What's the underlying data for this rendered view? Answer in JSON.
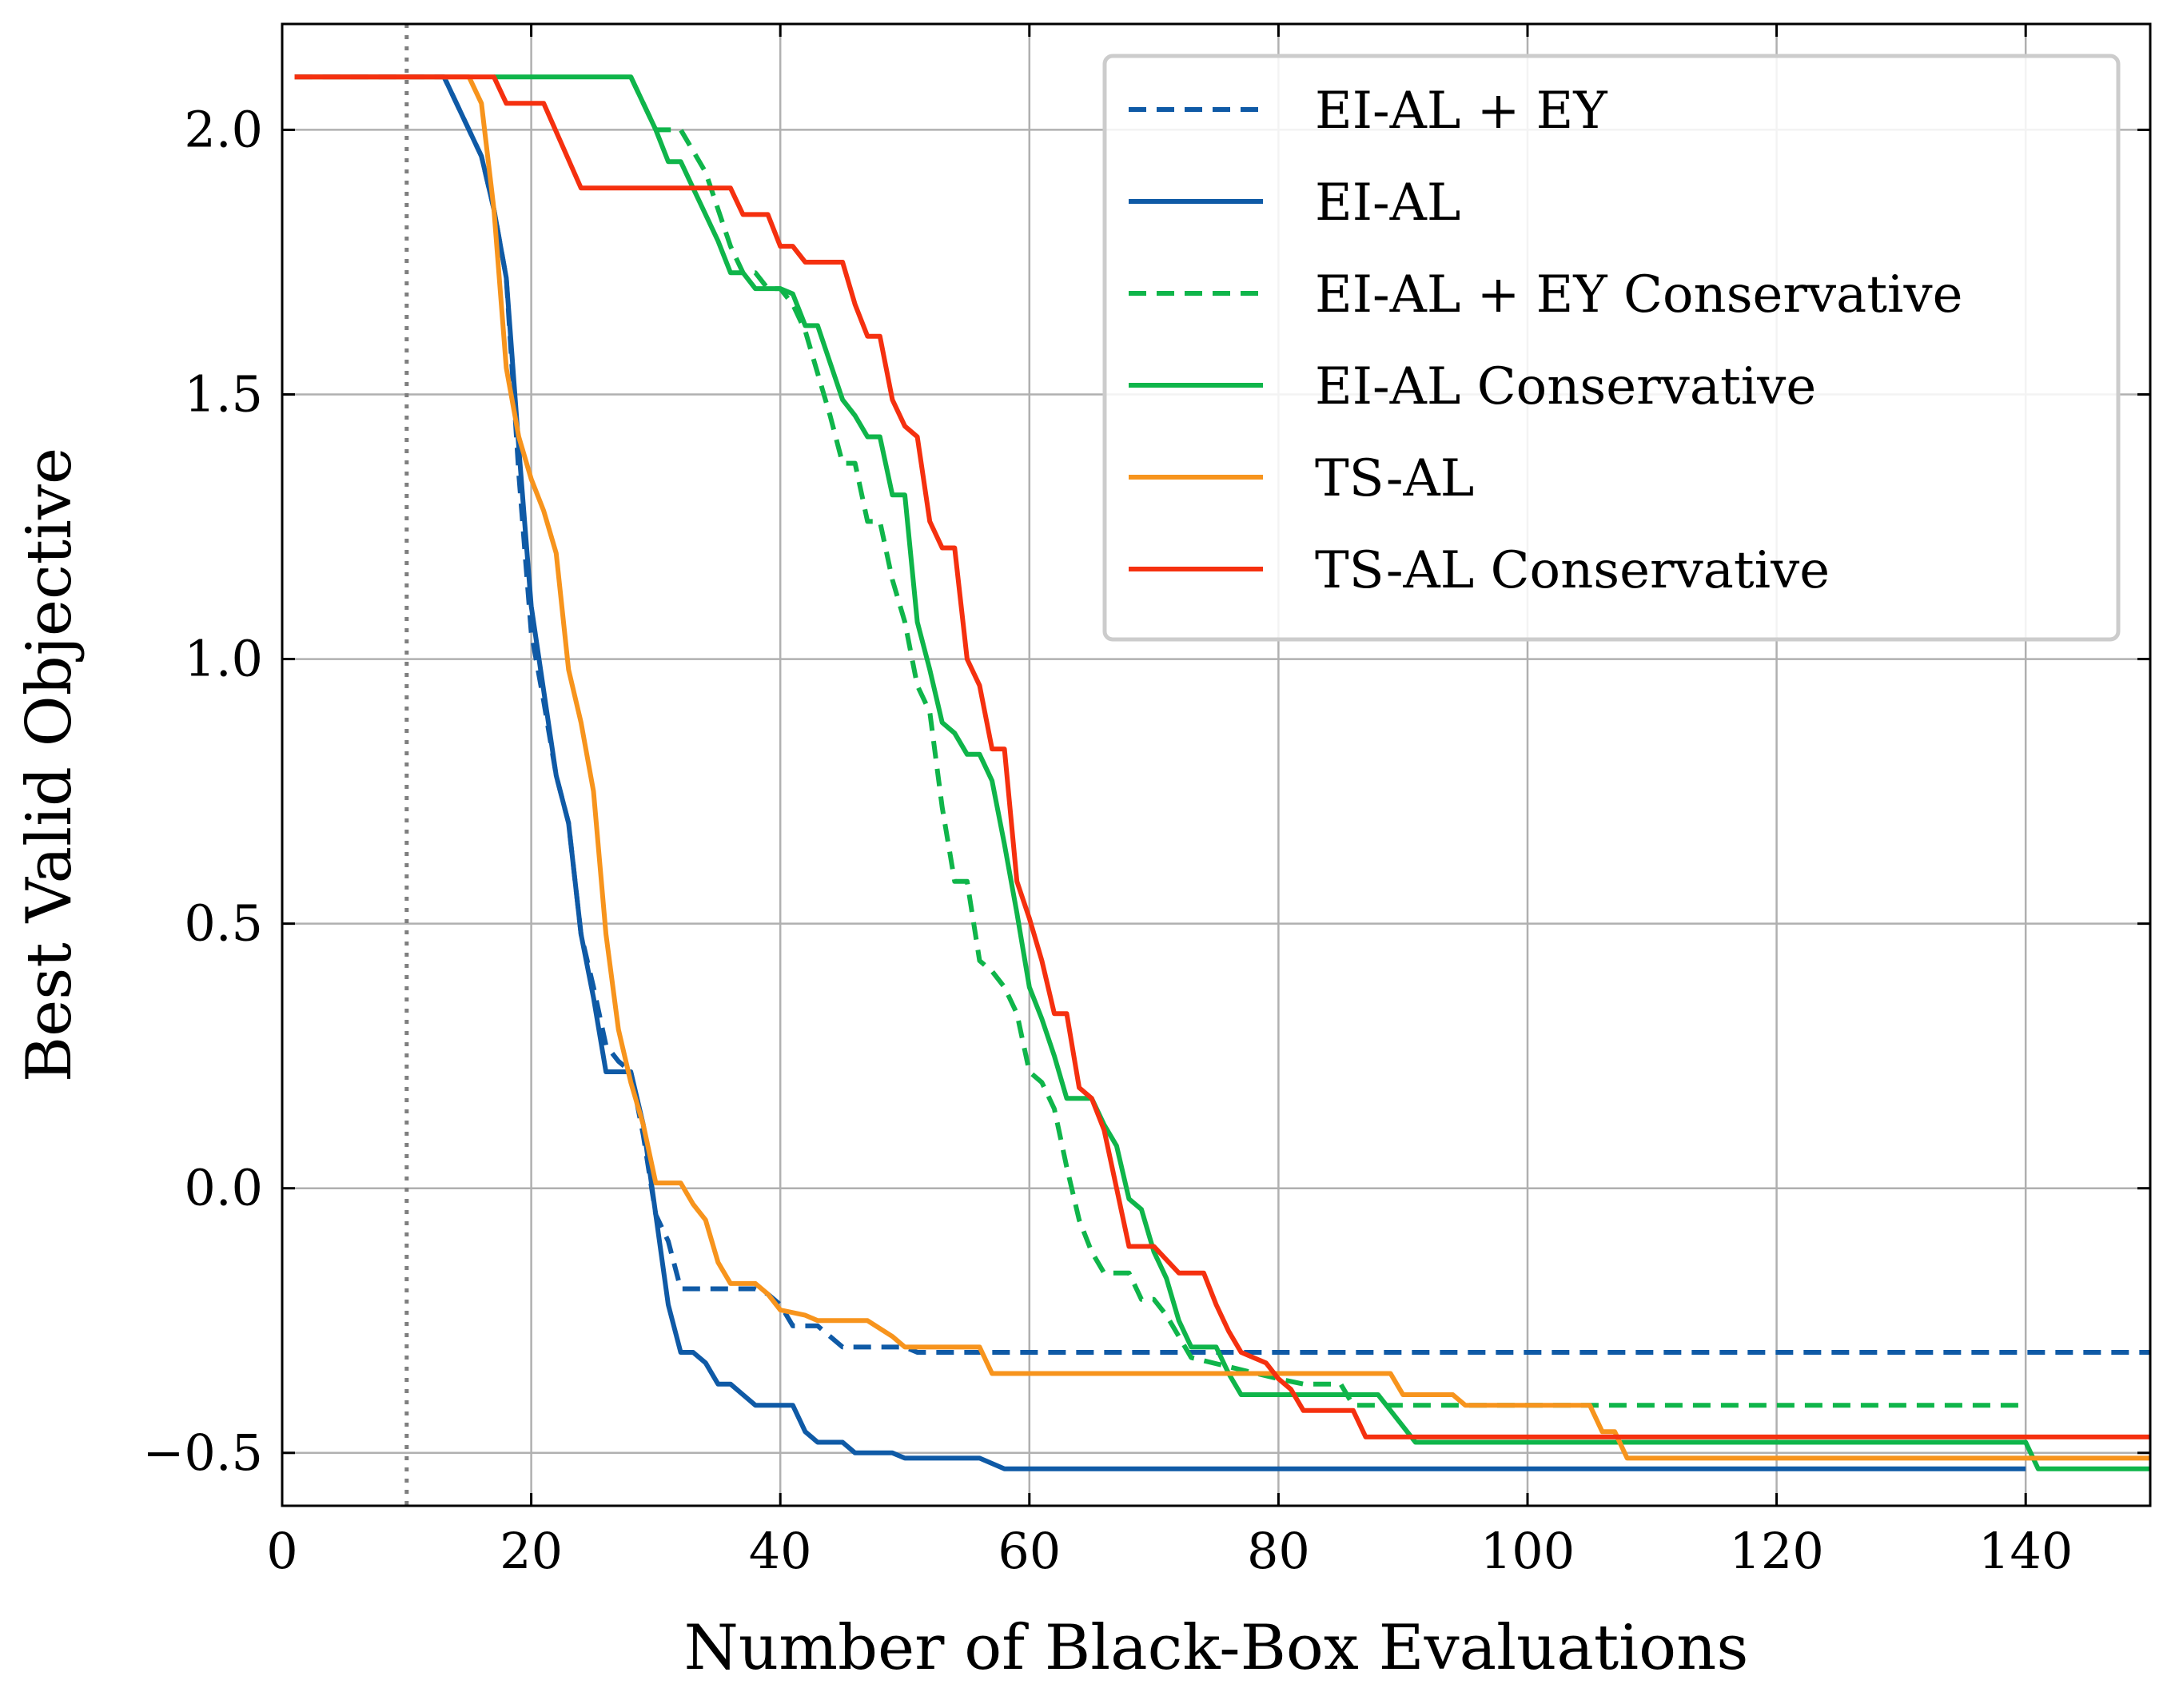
{
  "chart_data": {
    "type": "line",
    "title": "",
    "xlabel": "Number of Black-Box Evaluations",
    "ylabel": "Best Valid Objective",
    "xlim": [
      0,
      150
    ],
    "ylim": [
      -0.6,
      2.2
    ],
    "x_ticks": [
      0,
      20,
      40,
      60,
      80,
      100,
      120,
      140
    ],
    "x_tick_labels": [
      "0",
      "20",
      "40",
      "60",
      "80",
      "100",
      "120",
      "140"
    ],
    "y_ticks": [
      -0.5,
      0.0,
      0.5,
      1.0,
      1.5,
      2.0
    ],
    "y_tick_labels": [
      "−0.5",
      "0.0",
      "0.5",
      "1.0",
      "1.5",
      "2.0"
    ],
    "grid": true,
    "legend_position": "top-right",
    "vline": {
      "x": 10,
      "style": "dotted",
      "color": "#7f7f7f"
    },
    "series": [
      {
        "name": "EI-AL + EY",
        "color": "#0f5aa6",
        "dash": "dashed",
        "points": [
          [
            1,
            2.1
          ],
          [
            13,
            2.1
          ],
          [
            16,
            1.95
          ],
          [
            17,
            1.85
          ],
          [
            18,
            1.72
          ],
          [
            19,
            1.35
          ],
          [
            20,
            1.05
          ],
          [
            21,
            0.92
          ],
          [
            22,
            0.78
          ],
          [
            23,
            0.69
          ],
          [
            24,
            0.48
          ],
          [
            25,
            0.38
          ],
          [
            26,
            0.27
          ],
          [
            27,
            0.24
          ],
          [
            28,
            0.22
          ],
          [
            29,
            0.1
          ],
          [
            30,
            -0.05
          ],
          [
            31,
            -0.1
          ],
          [
            32,
            -0.19
          ],
          [
            33,
            -0.19
          ],
          [
            38,
            -0.19
          ],
          [
            39,
            -0.2
          ],
          [
            40,
            -0.22
          ],
          [
            41,
            -0.26
          ],
          [
            43,
            -0.26
          ],
          [
            45,
            -0.3
          ],
          [
            50,
            -0.3
          ],
          [
            51,
            -0.31
          ],
          [
            150,
            -0.31
          ]
        ]
      },
      {
        "name": "EI-AL",
        "color": "#0f5aa6",
        "dash": "solid",
        "points": [
          [
            1,
            2.1
          ],
          [
            13,
            2.1
          ],
          [
            16,
            1.95
          ],
          [
            17,
            1.85
          ],
          [
            18,
            1.72
          ],
          [
            19,
            1.4
          ],
          [
            20,
            1.1
          ],
          [
            21,
            0.94
          ],
          [
            22,
            0.78
          ],
          [
            23,
            0.69
          ],
          [
            24,
            0.48
          ],
          [
            25,
            0.36
          ],
          [
            26,
            0.22
          ],
          [
            27,
            0.22
          ],
          [
            28,
            0.22
          ],
          [
            29,
            0.12
          ],
          [
            30,
            -0.05
          ],
          [
            31,
            -0.22
          ],
          [
            32,
            -0.31
          ],
          [
            33,
            -0.31
          ],
          [
            34,
            -0.33
          ],
          [
            35,
            -0.37
          ],
          [
            36,
            -0.37
          ],
          [
            37,
            -0.39
          ],
          [
            38,
            -0.41
          ],
          [
            41,
            -0.41
          ],
          [
            42,
            -0.46
          ],
          [
            43,
            -0.48
          ],
          [
            45,
            -0.48
          ],
          [
            46,
            -0.5
          ],
          [
            49,
            -0.5
          ],
          [
            50,
            -0.51
          ],
          [
            56,
            -0.51
          ],
          [
            58,
            -0.53
          ],
          [
            140,
            -0.53
          ]
        ]
      },
      {
        "name": "EI-AL + EY Conservative",
        "color": "#0fb54a",
        "dash": "dashed",
        "points": [
          [
            28,
            2.1
          ],
          [
            30,
            2.0
          ],
          [
            32,
            2.0
          ],
          [
            34,
            1.92
          ],
          [
            35,
            1.85
          ],
          [
            36,
            1.78
          ],
          [
            37,
            1.73
          ],
          [
            38,
            1.73
          ],
          [
            39,
            1.7
          ],
          [
            40,
            1.7
          ],
          [
            41,
            1.67
          ],
          [
            42,
            1.62
          ],
          [
            43,
            1.54
          ],
          [
            44,
            1.46
          ],
          [
            45,
            1.37
          ],
          [
            46,
            1.37
          ],
          [
            47,
            1.26
          ],
          [
            48,
            1.26
          ],
          [
            49,
            1.15
          ],
          [
            50,
            1.07
          ],
          [
            51,
            0.95
          ],
          [
            52,
            0.9
          ],
          [
            53,
            0.72
          ],
          [
            54,
            0.58
          ],
          [
            55,
            0.58
          ],
          [
            56,
            0.43
          ],
          [
            57,
            0.41
          ],
          [
            58,
            0.38
          ],
          [
            59,
            0.33
          ],
          [
            60,
            0.22
          ],
          [
            61,
            0.2
          ],
          [
            62,
            0.15
          ],
          [
            63,
            0.04
          ],
          [
            64,
            -0.06
          ],
          [
            65,
            -0.12
          ],
          [
            66,
            -0.16
          ],
          [
            68,
            -0.16
          ],
          [
            69,
            -0.21
          ],
          [
            70,
            -0.21
          ],
          [
            71,
            -0.24
          ],
          [
            72,
            -0.28
          ],
          [
            73,
            -0.32
          ],
          [
            80,
            -0.36
          ],
          [
            82,
            -0.37
          ],
          [
            85,
            -0.37
          ],
          [
            86,
            -0.41
          ],
          [
            140,
            -0.41
          ]
        ]
      },
      {
        "name": "EI-AL Conservative",
        "color": "#0fb54a",
        "dash": "solid",
        "points": [
          [
            17,
            2.1
          ],
          [
            28,
            2.1
          ],
          [
            30,
            2.0
          ],
          [
            31,
            1.94
          ],
          [
            32,
            1.94
          ],
          [
            33,
            1.89
          ],
          [
            34,
            1.84
          ],
          [
            35,
            1.79
          ],
          [
            36,
            1.73
          ],
          [
            37,
            1.73
          ],
          [
            38,
            1.7
          ],
          [
            40,
            1.7
          ],
          [
            41,
            1.69
          ],
          [
            42,
            1.63
          ],
          [
            43,
            1.63
          ],
          [
            44,
            1.56
          ],
          [
            45,
            1.49
          ],
          [
            46,
            1.46
          ],
          [
            47,
            1.42
          ],
          [
            48,
            1.42
          ],
          [
            49,
            1.31
          ],
          [
            50,
            1.31
          ],
          [
            51,
            1.07
          ],
          [
            52,
            0.98
          ],
          [
            53,
            0.88
          ],
          [
            54,
            0.86
          ],
          [
            55,
            0.82
          ],
          [
            56,
            0.82
          ],
          [
            57,
            0.77
          ],
          [
            58,
            0.65
          ],
          [
            59,
            0.52
          ],
          [
            60,
            0.38
          ],
          [
            61,
            0.32
          ],
          [
            62,
            0.25
          ],
          [
            63,
            0.17
          ],
          [
            64,
            0.17
          ],
          [
            65,
            0.17
          ],
          [
            66,
            0.12
          ],
          [
            67,
            0.08
          ],
          [
            68,
            -0.02
          ],
          [
            69,
            -0.04
          ],
          [
            70,
            -0.12
          ],
          [
            71,
            -0.17
          ],
          [
            72,
            -0.25
          ],
          [
            73,
            -0.3
          ],
          [
            75,
            -0.3
          ],
          [
            76,
            -0.35
          ],
          [
            77,
            -0.39
          ],
          [
            83,
            -0.39
          ],
          [
            88,
            -0.39
          ],
          [
            89,
            -0.42
          ],
          [
            91,
            -0.48
          ],
          [
            140,
            -0.48
          ],
          [
            141,
            -0.53
          ],
          [
            150,
            -0.53
          ]
        ]
      },
      {
        "name": "TS-AL",
        "color": "#f7941d",
        "dash": "solid",
        "points": [
          [
            1,
            2.1
          ],
          [
            15,
            2.1
          ],
          [
            16,
            2.05
          ],
          [
            17,
            1.85
          ],
          [
            18,
            1.55
          ],
          [
            19,
            1.42
          ],
          [
            20,
            1.34
          ],
          [
            21,
            1.28
          ],
          [
            22,
            1.2
          ],
          [
            23,
            0.98
          ],
          [
            24,
            0.88
          ],
          [
            25,
            0.75
          ],
          [
            26,
            0.48
          ],
          [
            27,
            0.3
          ],
          [
            28,
            0.2
          ],
          [
            29,
            0.12
          ],
          [
            30,
            0.01
          ],
          [
            32,
            0.01
          ],
          [
            33,
            -0.03
          ],
          [
            34,
            -0.06
          ],
          [
            35,
            -0.14
          ],
          [
            36,
            -0.18
          ],
          [
            38,
            -0.18
          ],
          [
            39,
            -0.2
          ],
          [
            40,
            -0.23
          ],
          [
            42,
            -0.24
          ],
          [
            43,
            -0.25
          ],
          [
            47,
            -0.25
          ],
          [
            49,
            -0.28
          ],
          [
            50,
            -0.3
          ],
          [
            56,
            -0.3
          ],
          [
            57,
            -0.35
          ],
          [
            89,
            -0.35
          ],
          [
            90,
            -0.39
          ],
          [
            94,
            -0.39
          ],
          [
            95,
            -0.41
          ],
          [
            105,
            -0.41
          ],
          [
            106,
            -0.46
          ],
          [
            107,
            -0.46
          ],
          [
            108,
            -0.51
          ],
          [
            150,
            -0.51
          ]
        ]
      },
      {
        "name": "TS-AL Conservative",
        "color": "#f5300f",
        "dash": "solid",
        "points": [
          [
            1,
            2.1
          ],
          [
            17,
            2.1
          ],
          [
            18,
            2.05
          ],
          [
            21,
            2.05
          ],
          [
            24,
            1.89
          ],
          [
            36,
            1.89
          ],
          [
            37,
            1.84
          ],
          [
            39,
            1.84
          ],
          [
            40,
            1.78
          ],
          [
            41,
            1.78
          ],
          [
            42,
            1.75
          ],
          [
            45,
            1.75
          ],
          [
            46,
            1.67
          ],
          [
            47,
            1.61
          ],
          [
            48,
            1.61
          ],
          [
            49,
            1.49
          ],
          [
            50,
            1.44
          ],
          [
            51,
            1.42
          ],
          [
            52,
            1.26
          ],
          [
            53,
            1.21
          ],
          [
            54,
            1.21
          ],
          [
            55,
            1.0
          ],
          [
            56,
            0.95
          ],
          [
            57,
            0.83
          ],
          [
            58,
            0.83
          ],
          [
            59,
            0.58
          ],
          [
            60,
            0.51
          ],
          [
            61,
            0.43
          ],
          [
            62,
            0.33
          ],
          [
            63,
            0.33
          ],
          [
            64,
            0.19
          ],
          [
            65,
            0.17
          ],
          [
            66,
            0.11
          ],
          [
            67,
            0.0
          ],
          [
            68,
            -0.11
          ],
          [
            70,
            -0.11
          ],
          [
            72,
            -0.16
          ],
          [
            74,
            -0.16
          ],
          [
            75,
            -0.22
          ],
          [
            76,
            -0.27
          ],
          [
            77,
            -0.31
          ],
          [
            79,
            -0.33
          ],
          [
            80,
            -0.36
          ],
          [
            81,
            -0.38
          ],
          [
            82,
            -0.42
          ],
          [
            86,
            -0.42
          ],
          [
            87,
            -0.47
          ],
          [
            150,
            -0.47
          ]
        ]
      }
    ]
  }
}
